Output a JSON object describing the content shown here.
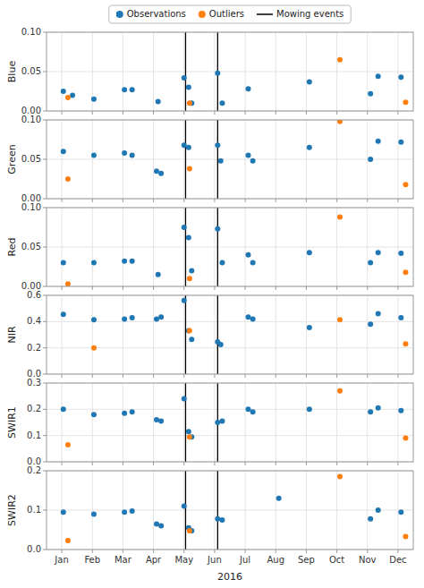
{
  "chart_data": [
    {
      "type": "scatter",
      "ylabel": "Blue",
      "grid": true,
      "legend": "top",
      "tick_labels": "y",
      "xlim": [
        0.5,
        12.5
      ],
      "xticks": [
        {
          "value": 1,
          "label": "Jan"
        },
        {
          "value": 2,
          "label": "Feb"
        },
        {
          "value": 3,
          "label": "Mar"
        },
        {
          "value": 4,
          "label": "Apr"
        },
        {
          "value": 5,
          "label": "May"
        },
        {
          "value": 6,
          "label": "Jun"
        },
        {
          "value": 7,
          "label": "Jul"
        },
        {
          "value": 8,
          "label": "Aug"
        },
        {
          "value": 9,
          "label": "Sep"
        },
        {
          "value": 10,
          "label": "Oct"
        },
        {
          "value": 11,
          "label": "Nov"
        },
        {
          "value": 12,
          "label": "Dec"
        }
      ],
      "ylim": [
        0,
        0.1
      ],
      "yticks": [
        {
          "value": 0.0,
          "label": "0.00"
        },
        0.05,
        {
          "value": 0.1,
          "label": "0.10"
        }
      ],
      "series": [
        {
          "name": "Observations",
          "type": "scatter",
          "marker": "circle",
          "color": "#1f77b4",
          "x": [
            1.05,
            1.35,
            2.05,
            3.05,
            3.3,
            4.15,
            5.0,
            5.15,
            5.25,
            6.1,
            6.25,
            7.1,
            9.1,
            11.1,
            11.35,
            12.1
          ],
          "values": [
            0.025,
            0.02,
            0.015,
            0.027,
            0.027,
            0.012,
            0.042,
            0.03,
            0.01,
            0.048,
            0.01,
            0.028,
            0.037,
            0.022,
            0.044,
            0.043
          ]
        },
        {
          "name": "Outliers",
          "type": "scatter",
          "marker": "circle",
          "color": "#ff7f0e",
          "x": [
            1.2,
            5.18,
            10.1,
            12.25
          ],
          "values": [
            0.017,
            0.01,
            0.065,
            0.011
          ]
        },
        {
          "name": "Mowing events",
          "type": "vline",
          "line_style": "solid",
          "color": "#000000",
          "x": [
            5.05,
            6.1
          ]
        }
      ]
    },
    {
      "type": "scatter",
      "ylabel": "Green",
      "grid": true,
      "tick_labels": "y",
      "xlim": [
        0.5,
        12.5
      ],
      "xticks": [
        {
          "value": 1,
          "label": "Jan"
        },
        {
          "value": 2,
          "label": "Feb"
        },
        {
          "value": 3,
          "label": "Mar"
        },
        {
          "value": 4,
          "label": "Apr"
        },
        {
          "value": 5,
          "label": "May"
        },
        {
          "value": 6,
          "label": "Jun"
        },
        {
          "value": 7,
          "label": "Jul"
        },
        {
          "value": 8,
          "label": "Aug"
        },
        {
          "value": 9,
          "label": "Sep"
        },
        {
          "value": 10,
          "label": "Oct"
        },
        {
          "value": 11,
          "label": "Nov"
        },
        {
          "value": 12,
          "label": "Dec"
        }
      ],
      "ylim": [
        0,
        0.1
      ],
      "yticks": [
        {
          "value": 0.0,
          "label": "0.00"
        },
        0.05,
        {
          "value": 0.1,
          "label": "0.10"
        }
      ],
      "series": [
        {
          "name": "Observations",
          "type": "scatter",
          "marker": "circle",
          "color": "#1f77b4",
          "x": [
            1.05,
            2.05,
            3.05,
            3.3,
            4.1,
            4.25,
            5.0,
            5.15,
            6.1,
            6.2,
            7.1,
            7.25,
            9.1,
            11.1,
            11.35,
            12.1
          ],
          "values": [
            0.06,
            0.055,
            0.058,
            0.055,
            0.035,
            0.032,
            0.068,
            0.065,
            0.068,
            0.048,
            0.055,
            0.048,
            0.065,
            0.05,
            0.073,
            0.072
          ]
        },
        {
          "name": "Outliers",
          "type": "scatter",
          "marker": "circle",
          "color": "#ff7f0e",
          "x": [
            1.2,
            5.18,
            10.1,
            12.25
          ],
          "values": [
            0.025,
            0.038,
            0.098,
            0.018
          ]
        },
        {
          "name": "Mowing events",
          "type": "vline",
          "line_style": "solid",
          "color": "#000000",
          "x": [
            5.05,
            6.1
          ]
        }
      ]
    },
    {
      "type": "scatter",
      "ylabel": "Red",
      "grid": true,
      "tick_labels": "y",
      "xlim": [
        0.5,
        12.5
      ],
      "xticks": [
        {
          "value": 1,
          "label": "Jan"
        },
        {
          "value": 2,
          "label": "Feb"
        },
        {
          "value": 3,
          "label": "Mar"
        },
        {
          "value": 4,
          "label": "Apr"
        },
        {
          "value": 5,
          "label": "May"
        },
        {
          "value": 6,
          "label": "Jun"
        },
        {
          "value": 7,
          "label": "Jul"
        },
        {
          "value": 8,
          "label": "Aug"
        },
        {
          "value": 9,
          "label": "Sep"
        },
        {
          "value": 10,
          "label": "Oct"
        },
        {
          "value": 11,
          "label": "Nov"
        },
        {
          "value": 12,
          "label": "Dec"
        }
      ],
      "ylim": [
        0,
        0.1
      ],
      "yticks": [
        {
          "value": 0.0,
          "label": "0.00"
        },
        0.05,
        {
          "value": 0.1,
          "label": "0.10"
        }
      ],
      "series": [
        {
          "name": "Observations",
          "type": "scatter",
          "marker": "circle",
          "color": "#1f77b4",
          "x": [
            1.05,
            2.05,
            3.05,
            3.3,
            4.15,
            5.0,
            5.15,
            5.25,
            6.1,
            6.25,
            7.1,
            7.25,
            9.1,
            11.1,
            11.35,
            12.1
          ],
          "values": [
            0.03,
            0.03,
            0.032,
            0.032,
            0.015,
            0.075,
            0.062,
            0.02,
            0.073,
            0.03,
            0.04,
            0.03,
            0.043,
            0.03,
            0.043,
            0.042
          ]
        },
        {
          "name": "Outliers",
          "type": "scatter",
          "marker": "circle",
          "color": "#ff7f0e",
          "x": [
            1.2,
            5.18,
            10.1,
            12.25
          ],
          "values": [
            0.003,
            0.01,
            0.088,
            0.018
          ]
        },
        {
          "name": "Mowing events",
          "type": "vline",
          "line_style": "solid",
          "color": "#000000",
          "x": [
            5.05,
            6.1
          ]
        }
      ]
    },
    {
      "type": "scatter",
      "ylabel": "NIR",
      "grid": true,
      "tick_labels": "y",
      "xlim": [
        0.5,
        12.5
      ],
      "xticks": [
        {
          "value": 1,
          "label": "Jan"
        },
        {
          "value": 2,
          "label": "Feb"
        },
        {
          "value": 3,
          "label": "Mar"
        },
        {
          "value": 4,
          "label": "Apr"
        },
        {
          "value": 5,
          "label": "May"
        },
        {
          "value": 6,
          "label": "Jun"
        },
        {
          "value": 7,
          "label": "Jul"
        },
        {
          "value": 8,
          "label": "Aug"
        },
        {
          "value": 9,
          "label": "Sep"
        },
        {
          "value": 10,
          "label": "Oct"
        },
        {
          "value": 11,
          "label": "Nov"
        },
        {
          "value": 12,
          "label": "Dec"
        }
      ],
      "ylim": [
        0,
        0.6
      ],
      "yticks": [
        {
          "value": 0.0,
          "label": "0.0"
        },
        0.2,
        0.4,
        0.6
      ],
      "series": [
        {
          "name": "Observations",
          "type": "scatter",
          "marker": "circle",
          "color": "#1f77b4",
          "x": [
            1.05,
            2.05,
            3.05,
            3.3,
            4.1,
            4.25,
            5.0,
            5.15,
            5.25,
            6.1,
            6.2,
            7.1,
            7.25,
            9.1,
            11.1,
            11.35,
            12.1
          ],
          "values": [
            0.455,
            0.415,
            0.42,
            0.43,
            0.42,
            0.435,
            0.56,
            0.33,
            0.265,
            0.245,
            0.225,
            0.435,
            0.42,
            0.355,
            0.38,
            0.46,
            0.43
          ]
        },
        {
          "name": "Outliers",
          "type": "scatter",
          "marker": "circle",
          "color": "#ff7f0e",
          "x": [
            2.05,
            5.18,
            10.1,
            12.25
          ],
          "values": [
            0.2,
            0.33,
            0.415,
            0.23
          ]
        },
        {
          "name": "Mowing events",
          "type": "vline",
          "line_style": "solid",
          "color": "#000000",
          "x": [
            5.05,
            6.1
          ]
        }
      ]
    },
    {
      "type": "scatter",
      "ylabel": "SWIR1",
      "grid": true,
      "tick_labels": "y",
      "xlim": [
        0.5,
        12.5
      ],
      "xticks": [
        {
          "value": 1,
          "label": "Jan"
        },
        {
          "value": 2,
          "label": "Feb"
        },
        {
          "value": 3,
          "label": "Mar"
        },
        {
          "value": 4,
          "label": "Apr"
        },
        {
          "value": 5,
          "label": "May"
        },
        {
          "value": 6,
          "label": "Jun"
        },
        {
          "value": 7,
          "label": "Jul"
        },
        {
          "value": 8,
          "label": "Aug"
        },
        {
          "value": 9,
          "label": "Sep"
        },
        {
          "value": 10,
          "label": "Oct"
        },
        {
          "value": 11,
          "label": "Nov"
        },
        {
          "value": 12,
          "label": "Dec"
        }
      ],
      "ylim": [
        0,
        0.3
      ],
      "yticks": [
        {
          "value": 0.0,
          "label": "0.0"
        },
        0.1,
        0.2,
        0.3
      ],
      "series": [
        {
          "name": "Observations",
          "type": "scatter",
          "marker": "circle",
          "color": "#1f77b4",
          "x": [
            1.05,
            2.05,
            3.05,
            3.3,
            4.1,
            4.25,
            5.0,
            5.15,
            5.25,
            6.1,
            6.25,
            7.1,
            7.25,
            9.1,
            11.1,
            11.35,
            12.1
          ],
          "values": [
            0.2,
            0.18,
            0.185,
            0.19,
            0.16,
            0.155,
            0.24,
            0.115,
            0.095,
            0.15,
            0.155,
            0.2,
            0.19,
            0.2,
            0.19,
            0.205,
            0.195
          ]
        },
        {
          "name": "Outliers",
          "type": "scatter",
          "marker": "circle",
          "color": "#ff7f0e",
          "x": [
            1.2,
            5.18,
            10.1,
            12.25
          ],
          "values": [
            0.065,
            0.095,
            0.27,
            0.09
          ]
        },
        {
          "name": "Mowing events",
          "type": "vline",
          "line_style": "solid",
          "color": "#000000",
          "x": [
            5.05,
            6.1
          ]
        }
      ]
    },
    {
      "type": "scatter",
      "ylabel": "SWIR2",
      "xlabel": "2016",
      "grid": true,
      "xlim": [
        0.5,
        12.5
      ],
      "xticks": [
        {
          "value": 1,
          "label": "Jan"
        },
        {
          "value": 2,
          "label": "Feb"
        },
        {
          "value": 3,
          "label": "Mar"
        },
        {
          "value": 4,
          "label": "Apr"
        },
        {
          "value": 5,
          "label": "May"
        },
        {
          "value": 6,
          "label": "Jun"
        },
        {
          "value": 7,
          "label": "Jul"
        },
        {
          "value": 8,
          "label": "Aug"
        },
        {
          "value": 9,
          "label": "Sep"
        },
        {
          "value": 10,
          "label": "Oct"
        },
        {
          "value": 11,
          "label": "Nov"
        },
        {
          "value": 12,
          "label": "Dec"
        }
      ],
      "ylim": [
        0,
        0.2
      ],
      "yticks": [
        {
          "value": 0.0,
          "label": "0.0"
        },
        0.1,
        0.2
      ],
      "series": [
        {
          "name": "Observations",
          "type": "scatter",
          "marker": "circle",
          "color": "#1f77b4",
          "x": [
            1.05,
            2.05,
            3.05,
            3.3,
            4.1,
            4.25,
            5.0,
            5.15,
            5.25,
            6.1,
            6.25,
            8.1,
            11.1,
            11.35,
            12.1
          ],
          "values": [
            0.095,
            0.09,
            0.095,
            0.098,
            0.065,
            0.06,
            0.11,
            0.055,
            0.048,
            0.078,
            0.075,
            0.13,
            0.078,
            0.1,
            0.095
          ]
        },
        {
          "name": "Outliers",
          "type": "scatter",
          "marker": "circle",
          "color": "#ff7f0e",
          "x": [
            1.2,
            5.18,
            10.1,
            12.25
          ],
          "values": [
            0.023,
            0.048,
            0.185,
            0.033
          ]
        },
        {
          "name": "Mowing events",
          "type": "vline",
          "line_style": "solid",
          "color": "#000000",
          "x": [
            5.05,
            6.1
          ]
        }
      ]
    }
  ]
}
